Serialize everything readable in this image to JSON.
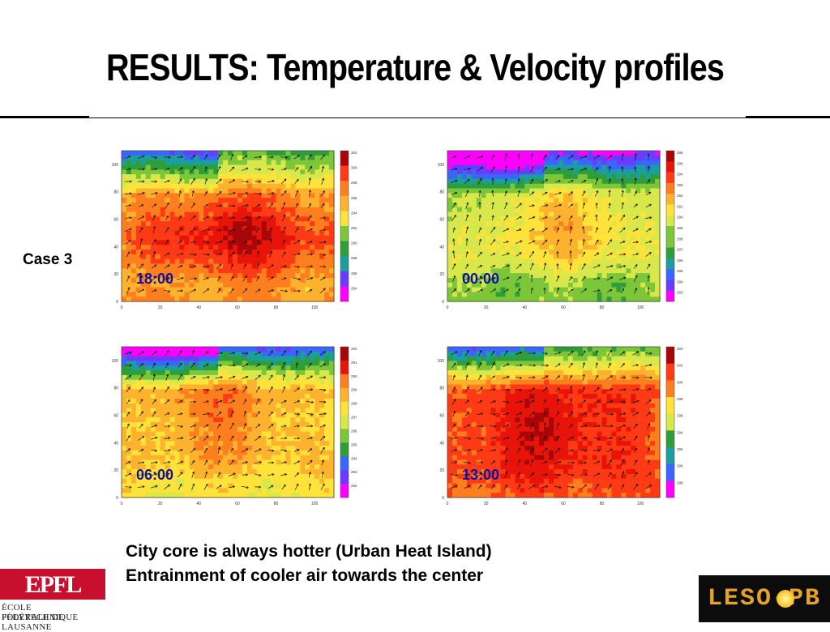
{
  "title": "RESULTS: Temperature & Velocity profiles",
  "case_label": "Case 3",
  "panels": [
    {
      "time": "18:00",
      "colorbar": [
        "302",
        "300",
        "298",
        "296",
        "294",
        "292",
        "290",
        "288",
        "286",
        "284"
      ],
      "yticks": [
        "100",
        "80",
        "60",
        "40",
        "20",
        "0"
      ],
      "xticks": [
        "0",
        "20",
        "40",
        "60",
        "80",
        "100"
      ]
    },
    {
      "time": "00:00",
      "colorbar": [
        "296",
        "295",
        "294",
        "293",
        "292",
        "291",
        "290",
        "289",
        "288",
        "287",
        "286",
        "285",
        "284",
        "283"
      ],
      "yticks": [
        "100",
        "80",
        "60",
        "40",
        "20",
        "0"
      ],
      "xticks": [
        "0",
        "20",
        "40",
        "60",
        "80",
        "100"
      ]
    },
    {
      "time": "06:00",
      "colorbar": [
        "292",
        "291",
        "290",
        "289",
        "288",
        "287",
        "286",
        "285",
        "284",
        "283",
        "282"
      ],
      "yticks": [
        "100",
        "80",
        "60",
        "40",
        "20",
        "0"
      ],
      "xticks": [
        "0",
        "20",
        "40",
        "60",
        "80",
        "100"
      ]
    },
    {
      "time": "13:00",
      "colorbar": [
        "304",
        "302",
        "300",
        "298",
        "296",
        "294",
        "292",
        "290",
        "288"
      ],
      "yticks": [
        "100",
        "80",
        "60",
        "40",
        "20",
        "0"
      ],
      "xticks": [
        "0",
        "20",
        "40",
        "60",
        "80",
        "100"
      ]
    }
  ],
  "bullets": [
    "City core is always hotter (Urban Heat Island)",
    "Entrainment of cooler air towards the center"
  ],
  "logos": {
    "epfl_mark": "EPFL",
    "epfl_line1": "ÉCOLE POLYTECHNIQUE",
    "epfl_line2": "FÉDÉRALE DE LAUSANNE",
    "leso": "LESO-PB"
  },
  "colors": {
    "palette": [
      "#ff00ff",
      "#6a3cff",
      "#3a66ff",
      "#1a9e9e",
      "#2e9e3a",
      "#7cc63a",
      "#d8e84a",
      "#ffe23a",
      "#ffb22e",
      "#ff7f1e",
      "#ff3a14",
      "#e8140a",
      "#a8070a"
    ],
    "time_label": "#1010a0"
  }
}
